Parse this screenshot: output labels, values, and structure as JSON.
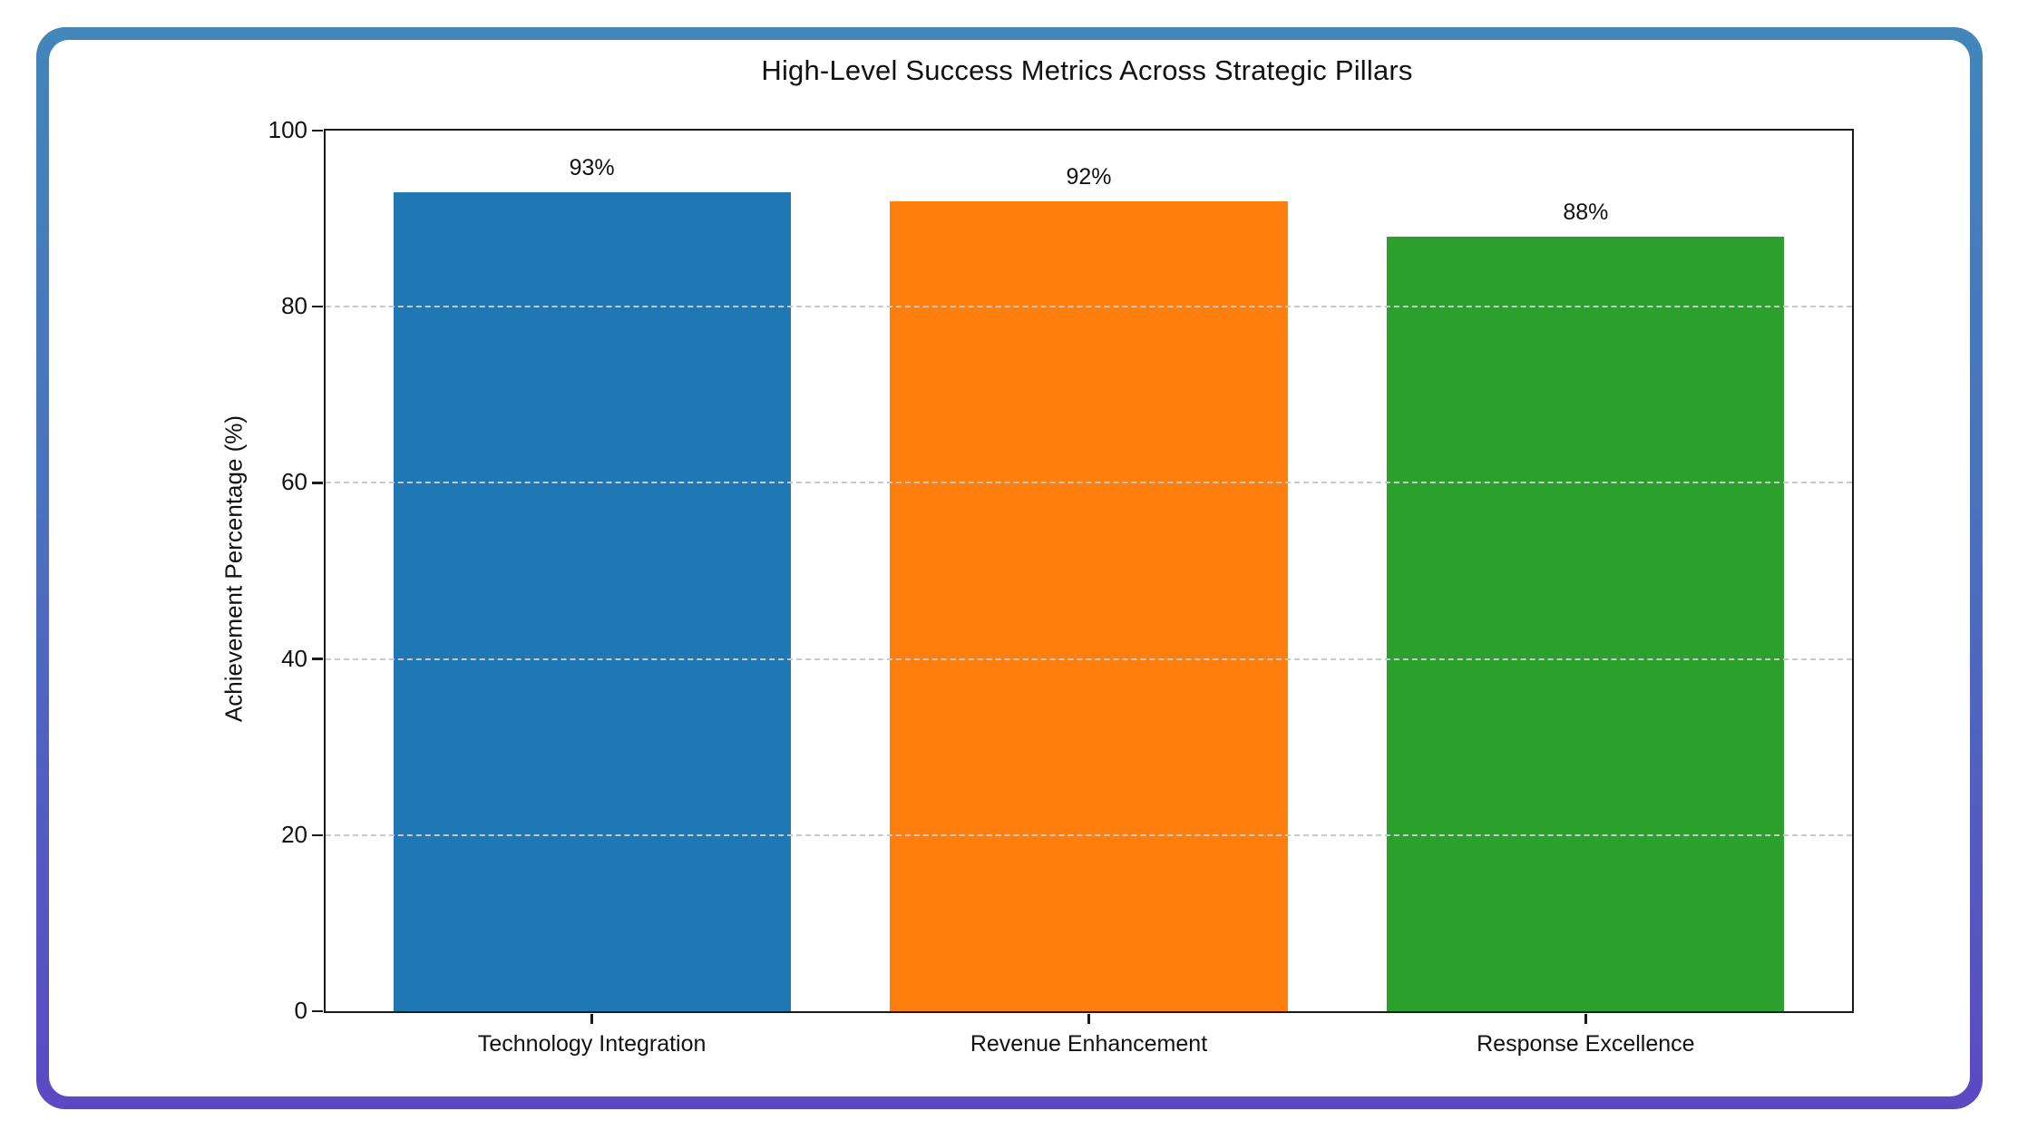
{
  "chart_data": {
    "type": "bar",
    "title": "High-Level Success Metrics Across Strategic Pillars",
    "xlabel": "",
    "ylabel": "Achievement Percentage (%)",
    "categories": [
      "Technology Integration",
      "Revenue Enhancement",
      "Response Excellence"
    ],
    "values": [
      93,
      92,
      88
    ],
    "value_labels": [
      "93%",
      "92%",
      "88%"
    ],
    "bar_colors": [
      "#1f77b4",
      "#ff7f0e",
      "#2ca02c"
    ],
    "ylim": [
      0,
      100
    ],
    "yticks": [
      0,
      20,
      40,
      60,
      80,
      100
    ],
    "grid": "horizontal-dashed-over-bars",
    "legend": "none",
    "frame_gradient_top": "#4286ba",
    "frame_gradient_bottom": "#5b49c4"
  }
}
